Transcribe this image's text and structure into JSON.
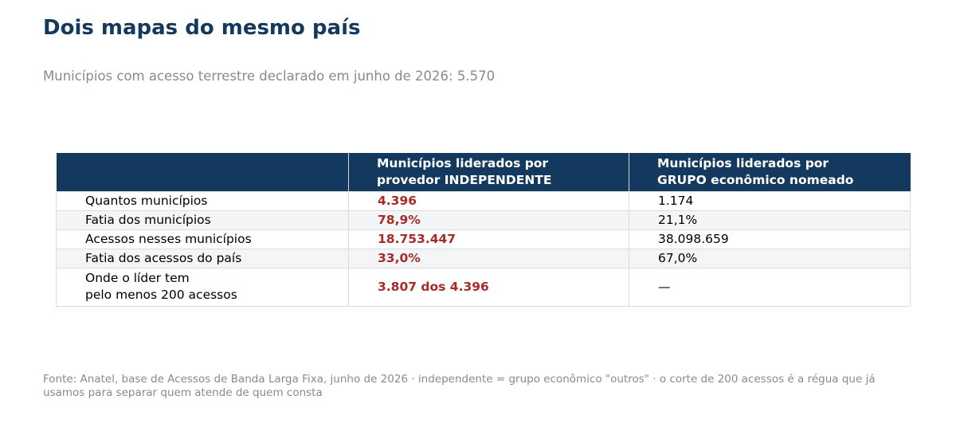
{
  "title": "Dois mapas do mesmo país",
  "subtitle": "Municípios com acesso terrestre declarado em junho de 2026: 5.570",
  "colors": {
    "header_bg": "#14395e",
    "title": "#14395e",
    "highlight": "#a62c2b",
    "muted": "#8a8a8a",
    "row_shade": "#f4f5f6"
  },
  "chart_data": {
    "type": "table",
    "columns": [
      "",
      [
        "Municípios liderados por",
        "provedor INDEPENDENTE"
      ],
      [
        "Municípios liderados por",
        "GRUPO econômico nomeado"
      ]
    ],
    "rows": [
      {
        "label": [
          "Quantos municípios"
        ],
        "independente": "4.396",
        "grupo": "1.174"
      },
      {
        "label": [
          "Fatia dos municípios"
        ],
        "independente": "78,9%",
        "grupo": "21,1%"
      },
      {
        "label": [
          "Acessos nesses municípios"
        ],
        "independente": "18.753.447",
        "grupo": "38.098.659"
      },
      {
        "label": [
          "Fatia dos acessos do país"
        ],
        "independente": "33,0%",
        "grupo": "67,0%"
      },
      {
        "label": [
          "Onde o líder tem",
          "pelo menos 200 acessos"
        ],
        "independente": "3.807 dos 4.396",
        "grupo": "—"
      }
    ]
  },
  "source": [
    "Fonte: Anatel, base de Acessos de Banda Larga Fixa, junho de 2026 · independente = grupo econômico \"outros\" · o corte de 200 acessos é a régua que já",
    "usamos para separar quem atende de quem consta"
  ]
}
